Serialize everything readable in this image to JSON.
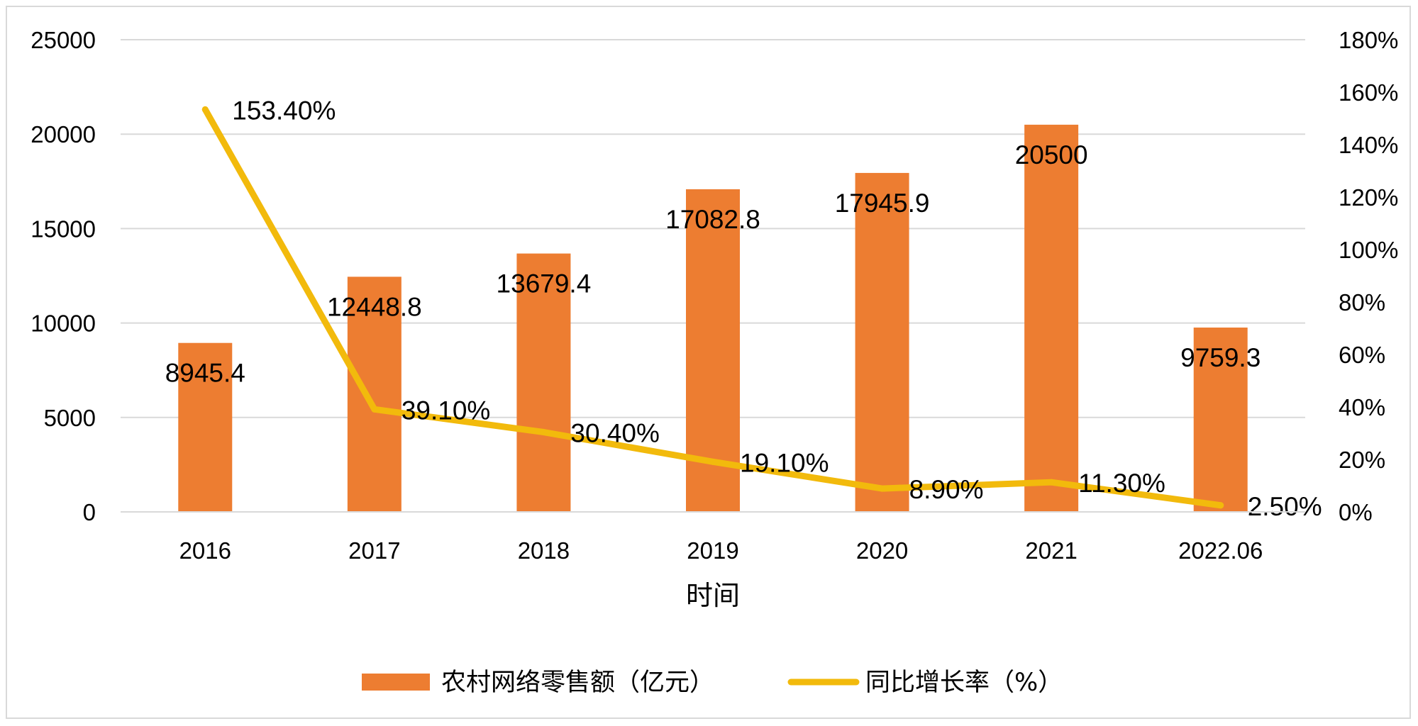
{
  "chart_data": {
    "type": "bar+line",
    "categories": [
      "2016",
      "2017",
      "2018",
      "2019",
      "2020",
      "2021",
      "2022.06"
    ],
    "series": [
      {
        "name": "农村网络零售额（亿元）",
        "type": "bar",
        "axis": "left",
        "color": "#ED7D31",
        "values": [
          8945.4,
          12448.8,
          13679.4,
          17082.8,
          17945.9,
          20500,
          9759.3
        ],
        "labels": [
          "8945.4",
          "12448.8",
          "13679.4",
          "17082.8",
          "17945.9",
          "20500",
          "9759.3"
        ]
      },
      {
        "name": "同比增长率（%）",
        "type": "line",
        "axis": "right",
        "color": "#F2BA0C",
        "values": [
          153.4,
          39.1,
          30.4,
          19.1,
          8.9,
          11.3,
          2.5
        ],
        "labels": [
          "153.40%",
          "39.10%",
          "30.40%",
          "19.10%",
          "8.90%",
          "11.30%",
          "2.50%"
        ]
      }
    ],
    "xlabel": "时间",
    "y_left": {
      "min": 0,
      "max": 25000,
      "ticks": [
        "0",
        "5000",
        "10000",
        "15000",
        "20000",
        "25000"
      ]
    },
    "y_right": {
      "min": 0,
      "max": 180,
      "ticks": [
        "0%",
        "20%",
        "40%",
        "60%",
        "80%",
        "100%",
        "120%",
        "140%",
        "160%",
        "180%"
      ]
    },
    "grid": true,
    "gridline_color": "#d9d9d9",
    "legend_position": "bottom"
  }
}
